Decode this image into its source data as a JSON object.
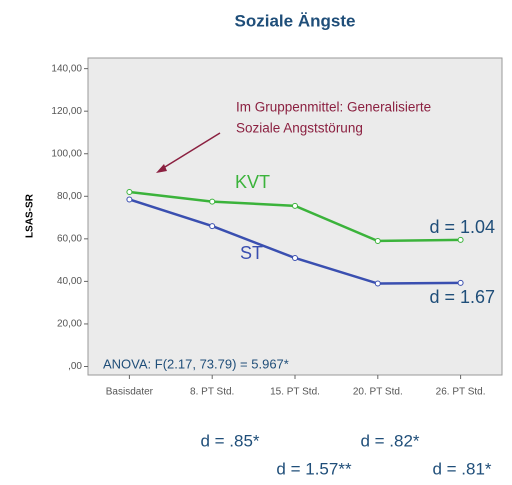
{
  "chart_data": {
    "type": "line",
    "title": "Soziale Ängste",
    "y_label": "LSAS-SR",
    "categories": [
      "Basisdater",
      "8. PT Std.",
      "15. PT Std.",
      "20. PT Std.",
      "26. PT Std."
    ],
    "series": [
      {
        "name": "KVT",
        "color": "#3bb33b",
        "values": [
          82,
          77.5,
          75.5,
          59,
          59.5
        ]
      },
      {
        "name": "ST",
        "color": "#3a4fb0",
        "values": [
          78.5,
          66,
          51,
          39,
          39.3
        ]
      }
    ],
    "ylim": [
      -4,
      145
    ],
    "yticks": [
      {
        "value": 0,
        "label": ",00"
      },
      {
        "value": 20,
        "label": "20,00"
      },
      {
        "value": 40,
        "label": "40,00"
      },
      {
        "value": 60,
        "label": "60,00"
      },
      {
        "value": 80,
        "label": "80,00"
      },
      {
        "value": 100,
        "label": "100,00"
      },
      {
        "value": 120,
        "label": "120,00"
      },
      {
        "value": 140,
        "label": "140,00"
      }
    ],
    "annotation_lines": [
      "Im Gruppenmittel: Generalisierte",
      "Soziale Angststörung"
    ],
    "series_effects": [
      "d = 1.04",
      "d = 1.67"
    ],
    "anova": "ANOVA: F(2.17, 73.79) = 5.967*",
    "effects_below": [
      "d = .85*",
      "d = .82*",
      "d = 1.57**",
      "d = .81*"
    ]
  }
}
